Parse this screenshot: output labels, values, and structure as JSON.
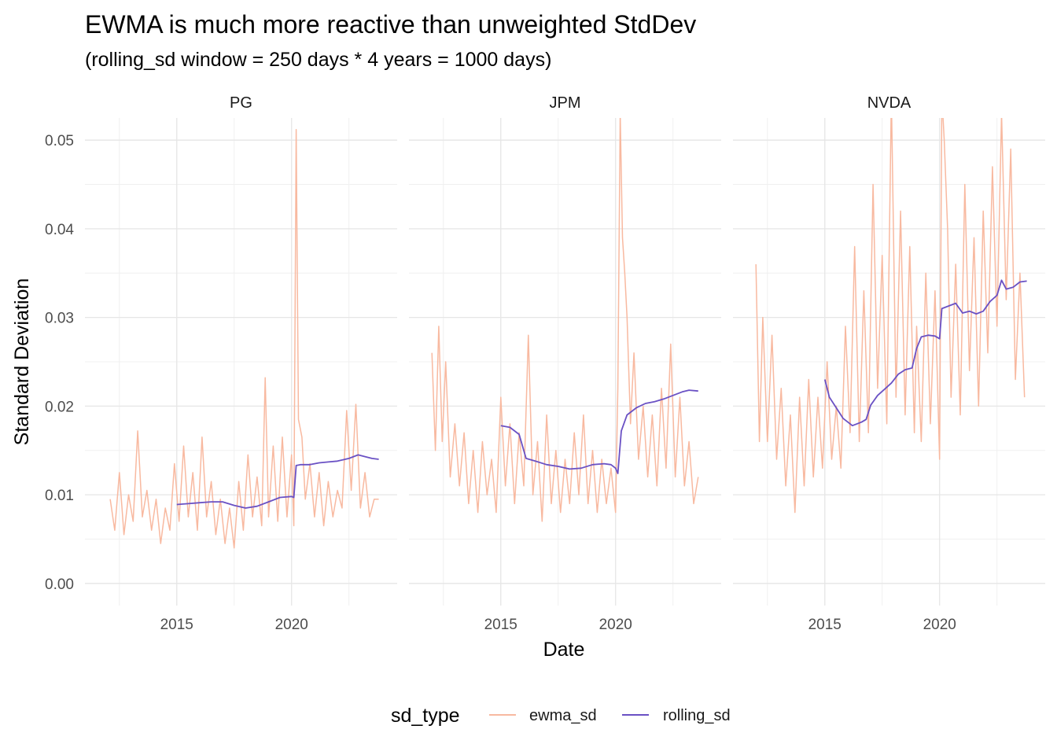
{
  "chart_data": {
    "type": "line",
    "title": "EWMA is much more reactive than unweighted StdDev",
    "subtitle": "(rolling_sd window = 250 days * 4 years = 1000 days)",
    "xlabel": "Date",
    "ylabel": "Standard Deviation",
    "xlim": [
      2011.0,
      2024.6
    ],
    "ylim": [
      -0.0025,
      0.0525
    ],
    "x_ticks": [
      2015,
      2020
    ],
    "x_tick_labels": [
      "2015",
      "2020"
    ],
    "y_ticks": [
      0.0,
      0.01,
      0.02,
      0.03,
      0.04,
      0.05
    ],
    "y_tick_labels": [
      "0.00",
      "0.01",
      "0.02",
      "0.03",
      "0.04",
      "0.05"
    ],
    "grid": true,
    "legend": {
      "title": "sd_type",
      "position": "bottom",
      "entries": [
        {
          "label": "ewma_sd",
          "color": "#f8b9a0"
        },
        {
          "label": "rolling_sd",
          "color": "#6a51c4"
        }
      ]
    },
    "facets": [
      {
        "name": "PG",
        "series": [
          {
            "name": "ewma_sd",
            "color": "#f8b9a0",
            "x": [
              2012.1,
              2012.3,
              2012.5,
              2012.7,
              2012.9,
              2013.1,
              2013.3,
              2013.5,
              2013.7,
              2013.9,
              2014.1,
              2014.3,
              2014.5,
              2014.7,
              2014.9,
              2015.1,
              2015.3,
              2015.5,
              2015.7,
              2015.9,
              2016.1,
              2016.3,
              2016.5,
              2016.7,
              2016.9,
              2017.1,
              2017.3,
              2017.5,
              2017.7,
              2017.9,
              2018.1,
              2018.3,
              2018.5,
              2018.7,
              2018.85,
              2019.0,
              2019.2,
              2019.4,
              2019.6,
              2019.8,
              2020.0,
              2020.1,
              2020.2,
              2020.3,
              2020.45,
              2020.6,
              2020.8,
              2021.0,
              2021.2,
              2021.4,
              2021.6,
              2021.8,
              2022.0,
              2022.2,
              2022.4,
              2022.6,
              2022.8,
              2023.0,
              2023.2,
              2023.4,
              2023.6,
              2023.8
            ],
            "y": [
              0.0095,
              0.006,
              0.0125,
              0.0055,
              0.01,
              0.007,
              0.0172,
              0.0075,
              0.0105,
              0.006,
              0.0095,
              0.0045,
              0.0085,
              0.006,
              0.0135,
              0.007,
              0.0155,
              0.0075,
              0.0125,
              0.006,
              0.0165,
              0.0075,
              0.0115,
              0.0055,
              0.0095,
              0.0045,
              0.0085,
              0.004,
              0.0115,
              0.006,
              0.0145,
              0.0075,
              0.012,
              0.0065,
              0.0232,
              0.0075,
              0.0155,
              0.007,
              0.0165,
              0.0075,
              0.0145,
              0.0065,
              0.0512,
              0.0185,
              0.0165,
              0.0095,
              0.0135,
              0.0075,
              0.0125,
              0.0065,
              0.0115,
              0.0075,
              0.0105,
              0.0085,
              0.0195,
              0.0105,
              0.0202,
              0.0085,
              0.0125,
              0.0075,
              0.0095,
              0.0095
            ]
          },
          {
            "name": "rolling_sd",
            "color": "#6a51c4",
            "x": [
              2015.0,
              2015.5,
              2016.0,
              2016.5,
              2017.0,
              2017.5,
              2018.0,
              2018.5,
              2019.0,
              2019.5,
              2020.0,
              2020.1,
              2020.2,
              2020.4,
              2020.8,
              2021.2,
              2021.6,
              2022.0,
              2022.5,
              2022.9,
              2023.2,
              2023.5,
              2023.8
            ],
            "y": [
              0.0089,
              0.009,
              0.0091,
              0.0092,
              0.0092,
              0.0088,
              0.0085,
              0.0087,
              0.0092,
              0.0097,
              0.0098,
              0.0097,
              0.0133,
              0.0134,
              0.0134,
              0.0136,
              0.0137,
              0.0138,
              0.0141,
              0.0145,
              0.0143,
              0.0141,
              0.014
            ]
          }
        ]
      },
      {
        "name": "JPM",
        "series": [
          {
            "name": "ewma_sd",
            "color": "#f8b9a0",
            "x": [
              2012.0,
              2012.15,
              2012.3,
              2012.45,
              2012.6,
              2012.8,
              2013.0,
              2013.2,
              2013.4,
              2013.6,
              2013.8,
              2014.0,
              2014.2,
              2014.4,
              2014.6,
              2014.8,
              2015.0,
              2015.2,
              2015.4,
              2015.6,
              2015.8,
              2016.0,
              2016.2,
              2016.4,
              2016.6,
              2016.8,
              2017.0,
              2017.2,
              2017.4,
              2017.6,
              2017.8,
              2018.0,
              2018.2,
              2018.4,
              2018.6,
              2018.8,
              2019.0,
              2019.2,
              2019.4,
              2019.6,
              2019.8,
              2020.0,
              2020.1,
              2020.2,
              2020.3,
              2020.4,
              2020.5,
              2020.65,
              2020.8,
              2021.0,
              2021.2,
              2021.4,
              2021.6,
              2021.8,
              2022.0,
              2022.2,
              2022.4,
              2022.6,
              2022.8,
              2023.0,
              2023.2,
              2023.4,
              2023.6
            ],
            "y": [
              0.026,
              0.015,
              0.029,
              0.016,
              0.025,
              0.012,
              0.018,
              0.011,
              0.017,
              0.009,
              0.015,
              0.008,
              0.016,
              0.01,
              0.014,
              0.008,
              0.021,
              0.011,
              0.018,
              0.009,
              0.017,
              0.011,
              0.028,
              0.01,
              0.016,
              0.007,
              0.019,
              0.009,
              0.015,
              0.008,
              0.014,
              0.009,
              0.017,
              0.01,
              0.019,
              0.009,
              0.015,
              0.008,
              0.014,
              0.009,
              0.013,
              0.008,
              0.022,
              0.053,
              0.039,
              0.035,
              0.03,
              0.018,
              0.026,
              0.014,
              0.02,
              0.012,
              0.019,
              0.011,
              0.022,
              0.013,
              0.027,
              0.012,
              0.021,
              0.011,
              0.016,
              0.009,
              0.012
            ]
          },
          {
            "name": "rolling_sd",
            "color": "#6a51c4",
            "x": [
              2015.0,
              2015.4,
              2015.8,
              2016.1,
              2016.5,
              2017.0,
              2017.5,
              2018.0,
              2018.5,
              2019.0,
              2019.5,
              2019.8,
              2020.0,
              2020.1,
              2020.25,
              2020.5,
              2020.9,
              2021.3,
              2021.7,
              2022.1,
              2022.5,
              2022.9,
              2023.2,
              2023.6
            ],
            "y": [
              0.0178,
              0.0176,
              0.0168,
              0.0141,
              0.0138,
              0.0134,
              0.0132,
              0.0129,
              0.013,
              0.0134,
              0.0135,
              0.0134,
              0.013,
              0.0124,
              0.0172,
              0.019,
              0.0198,
              0.0203,
              0.0205,
              0.0208,
              0.0212,
              0.0216,
              0.0218,
              0.0217
            ]
          }
        ]
      },
      {
        "name": "NVDA",
        "series": [
          {
            "name": "ewma_sd",
            "color": "#f8b9a0",
            "x": [
              2012.0,
              2012.15,
              2012.3,
              2012.5,
              2012.7,
              2012.9,
              2013.1,
              2013.3,
              2013.5,
              2013.7,
              2013.9,
              2014.1,
              2014.3,
              2014.5,
              2014.7,
              2014.9,
              2015.1,
              2015.3,
              2015.5,
              2015.7,
              2015.9,
              2016.1,
              2016.3,
              2016.5,
              2016.7,
              2016.9,
              2017.1,
              2017.3,
              2017.5,
              2017.7,
              2017.9,
              2018.1,
              2018.3,
              2018.5,
              2018.7,
              2018.9,
              2019.0,
              2019.2,
              2019.4,
              2019.6,
              2019.8,
              2020.0,
              2020.1,
              2020.2,
              2020.35,
              2020.5,
              2020.7,
              2020.9,
              2021.1,
              2021.3,
              2021.5,
              2021.7,
              2021.9,
              2022.1,
              2022.3,
              2022.5,
              2022.7,
              2022.9,
              2023.1,
              2023.3,
              2023.5,
              2023.7
            ],
            "y": [
              0.036,
              0.016,
              0.03,
              0.016,
              0.028,
              0.014,
              0.022,
              0.011,
              0.019,
              0.008,
              0.021,
              0.011,
              0.023,
              0.012,
              0.021,
              0.013,
              0.025,
              0.014,
              0.02,
              0.013,
              0.029,
              0.017,
              0.038,
              0.016,
              0.033,
              0.017,
              0.045,
              0.022,
              0.037,
              0.018,
              0.055,
              0.021,
              0.042,
              0.019,
              0.038,
              0.017,
              0.029,
              0.016,
              0.035,
              0.018,
              0.033,
              0.014,
              0.055,
              0.05,
              0.04,
              0.021,
              0.036,
              0.019,
              0.045,
              0.024,
              0.039,
              0.02,
              0.042,
              0.026,
              0.047,
              0.029,
              0.053,
              0.032,
              0.049,
              0.023,
              0.035,
              0.021
            ]
          },
          {
            "name": "rolling_sd",
            "color": "#6a51c4",
            "x": [
              2015.0,
              2015.2,
              2015.5,
              2015.8,
              2016.2,
              2016.6,
              2016.8,
              2017.0,
              2017.3,
              2017.6,
              2017.9,
              2018.2,
              2018.5,
              2018.8,
              2019.0,
              2019.2,
              2019.5,
              2019.8,
              2020.0,
              2020.1,
              2020.4,
              2020.7,
              2021.0,
              2021.3,
              2021.6,
              2021.9,
              2022.2,
              2022.5,
              2022.7,
              2022.9,
              2023.2,
              2023.5,
              2023.8
            ],
            "y": [
              0.023,
              0.021,
              0.0198,
              0.0186,
              0.0178,
              0.0182,
              0.0185,
              0.0201,
              0.0212,
              0.0219,
              0.0226,
              0.0236,
              0.0241,
              0.0243,
              0.0265,
              0.0278,
              0.028,
              0.0279,
              0.0276,
              0.031,
              0.0313,
              0.0316,
              0.0305,
              0.0307,
              0.0304,
              0.0307,
              0.0318,
              0.0325,
              0.0342,
              0.0332,
              0.0334,
              0.034,
              0.0341
            ]
          }
        ]
      }
    ]
  }
}
